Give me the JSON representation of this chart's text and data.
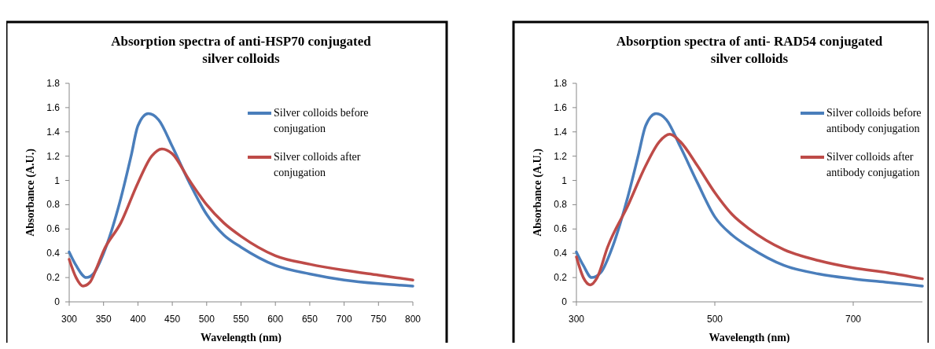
{
  "chart_data": [
    {
      "type": "line",
      "title": "Absorption spectra of anti-HSP70  conjugated silver colloids",
      "xlabel": "Wavelength (nm)",
      "ylabel": "Absorbance (A.U.)",
      "xlim": [
        300,
        800
      ],
      "xticks": [
        300,
        350,
        400,
        450,
        500,
        550,
        600,
        650,
        700,
        750,
        800
      ],
      "ylim": [
        0,
        1.8
      ],
      "yticks": [
        0,
        0.2,
        0.4,
        0.6,
        0.8,
        1,
        1.2,
        1.4,
        1.6,
        1.8
      ],
      "grid": false,
      "legend": "right",
      "x": [
        300,
        310,
        325,
        335,
        350,
        375,
        390,
        400,
        415,
        430,
        450,
        475,
        500,
        525,
        550,
        600,
        650,
        700,
        750,
        800
      ],
      "series": [
        {
          "name": "Silver colloids before conjugation",
          "color": "#4a7ebb",
          "values": [
            0.41,
            0.3,
            0.2,
            0.23,
            0.4,
            0.85,
            1.2,
            1.45,
            1.55,
            1.5,
            1.28,
            0.98,
            0.72,
            0.55,
            0.45,
            0.3,
            0.23,
            0.18,
            0.15,
            0.13
          ]
        },
        {
          "name": "Silver colloids after conjugation",
          "color": "#be4b48",
          "x": [
            300,
            310,
            320,
            330,
            340,
            350,
            375,
            400,
            420,
            435,
            450,
            475,
            500,
            525,
            550,
            600,
            650,
            700,
            750,
            800
          ],
          "values": [
            0.35,
            0.2,
            0.13,
            0.16,
            0.28,
            0.42,
            0.65,
            0.98,
            1.2,
            1.26,
            1.22,
            1.0,
            0.8,
            0.65,
            0.54,
            0.38,
            0.31,
            0.26,
            0.22,
            0.18
          ]
        }
      ]
    },
    {
      "type": "line",
      "title": "Absorption spectra of anti- RAD54 conjugated silver colloids",
      "xlabel": "Wavelength (nm)",
      "ylabel": "Absorbance (A.U.)",
      "xlim": [
        300,
        800
      ],
      "xticks": [
        300,
        500,
        700
      ],
      "ylim": [
        0,
        1.8
      ],
      "yticks": [
        0,
        0.2,
        0.4,
        0.6,
        0.8,
        1,
        1.2,
        1.4,
        1.6,
        1.8
      ],
      "grid": false,
      "legend": "right",
      "x": [
        300,
        310,
        322,
        335,
        350,
        375,
        390,
        400,
        415,
        430,
        450,
        475,
        500,
        525,
        550,
        600,
        650,
        700,
        750,
        800
      ],
      "series": [
        {
          "name": "Silver colloids before antibody conjugation",
          "color": "#4a7ebb",
          "values": [
            0.41,
            0.3,
            0.2,
            0.24,
            0.42,
            0.88,
            1.22,
            1.45,
            1.55,
            1.5,
            1.28,
            0.98,
            0.7,
            0.55,
            0.45,
            0.3,
            0.23,
            0.19,
            0.16,
            0.13
          ]
        },
        {
          "name": "Silver colloids after antibody conjugation",
          "color": "#be4b48",
          "x": [
            300,
            310,
            320,
            330,
            345,
            375,
            400,
            420,
            435,
            450,
            475,
            500,
            525,
            550,
            600,
            650,
            700,
            750,
            800
          ],
          "values": [
            0.37,
            0.2,
            0.14,
            0.2,
            0.45,
            0.8,
            1.12,
            1.32,
            1.38,
            1.32,
            1.12,
            0.9,
            0.72,
            0.6,
            0.43,
            0.34,
            0.28,
            0.24,
            0.19
          ]
        }
      ]
    }
  ]
}
